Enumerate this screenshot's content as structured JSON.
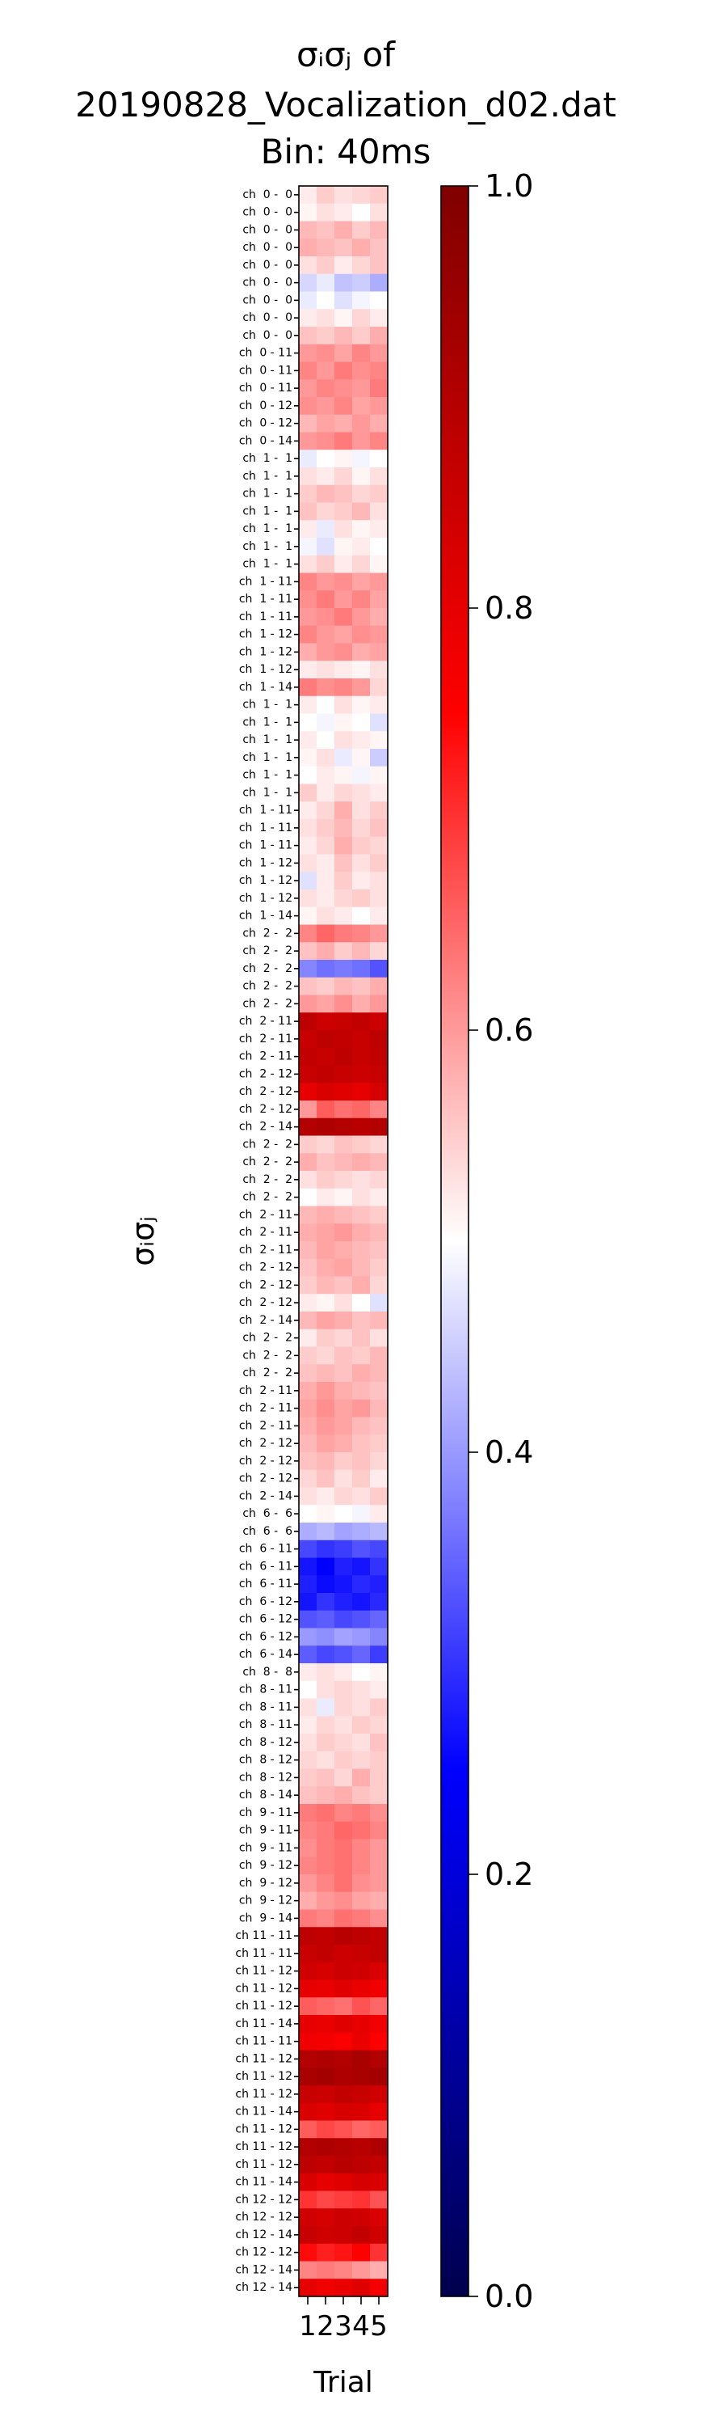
{
  "chart_data": {
    "type": "heatmap",
    "title": [
      "σᵢσⱼ of",
      "20190828_Vocalization_d02.dat",
      "Bin: 40ms"
    ],
    "xlabel": "Trial",
    "ylabel": "σᵢσⱼ",
    "x": [
      1,
      2,
      3,
      4,
      5
    ],
    "rows": [
      "ch  0 -  0",
      "ch  0 -  0",
      "ch  0 -  0",
      "ch  0 -  0",
      "ch  0 -  0",
      "ch  0 -  0",
      "ch  0 -  0",
      "ch  0 -  0",
      "ch  0 -  0",
      "ch  0 - 11",
      "ch  0 - 11",
      "ch  0 - 11",
      "ch  0 - 12",
      "ch  0 - 12",
      "ch  0 - 14",
      "ch  1 -  1",
      "ch  1 -  1",
      "ch  1 -  1",
      "ch  1 -  1",
      "ch  1 -  1",
      "ch  1 -  1",
      "ch  1 -  1",
      "ch  1 - 11",
      "ch  1 - 11",
      "ch  1 - 11",
      "ch  1 - 12",
      "ch  1 - 12",
      "ch  1 - 12",
      "ch  1 - 14",
      "ch  1 -  1",
      "ch  1 -  1",
      "ch  1 -  1",
      "ch  1 -  1",
      "ch  1 -  1",
      "ch  1 -  1",
      "ch  1 - 11",
      "ch  1 - 11",
      "ch  1 - 11",
      "ch  1 - 12",
      "ch  1 - 12",
      "ch  1 - 12",
      "ch  1 - 14",
      "ch  2 -  2",
      "ch  2 -  2",
      "ch  2 -  2",
      "ch  2 -  2",
      "ch  2 -  2",
      "ch  2 - 11",
      "ch  2 - 11",
      "ch  2 - 11",
      "ch  2 - 12",
      "ch  2 - 12",
      "ch  2 - 12",
      "ch  2 - 14",
      "ch  2 -  2",
      "ch  2 -  2",
      "ch  2 -  2",
      "ch  2 -  2",
      "ch  2 - 11",
      "ch  2 - 11",
      "ch  2 - 11",
      "ch  2 - 12",
      "ch  2 - 12",
      "ch  2 - 12",
      "ch  2 - 14",
      "ch  2 -  2",
      "ch  2 -  2",
      "ch  2 -  2",
      "ch  2 - 11",
      "ch  2 - 11",
      "ch  2 - 11",
      "ch  2 - 12",
      "ch  2 - 12",
      "ch  2 - 12",
      "ch  2 - 14",
      "ch  6 -  6",
      "ch  6 -  6",
      "ch  6 - 11",
      "ch  6 - 11",
      "ch  6 - 11",
      "ch  6 - 12",
      "ch  6 - 12",
      "ch  6 - 12",
      "ch  6 - 14",
      "ch  8 -  8",
      "ch  8 - 11",
      "ch  8 - 11",
      "ch  8 - 11",
      "ch  8 - 12",
      "ch  8 - 12",
      "ch  8 - 12",
      "ch  8 - 14",
      "ch  9 - 11",
      "ch  9 - 11",
      "ch  9 - 11",
      "ch  9 - 12",
      "ch  9 - 12",
      "ch  9 - 12",
      "ch  9 - 14",
      "ch 11 - 11",
      "ch 11 - 11",
      "ch 11 - 12",
      "ch 11 - 12",
      "ch 11 - 12",
      "ch 11 - 14",
      "ch 11 - 11",
      "ch 11 - 12",
      "ch 11 - 12",
      "ch 11 - 12",
      "ch 11 - 14",
      "ch 11 - 12",
      "ch 11 - 12",
      "ch 11 - 12",
      "ch 11 - 14",
      "ch 12 - 12",
      "ch 12 - 12",
      "ch 12 - 14",
      "ch 12 - 12",
      "ch 12 - 14",
      "ch 12 - 14"
    ],
    "values": [
      [
        0.52,
        0.55,
        0.53,
        0.54,
        0.55
      ],
      [
        0.51,
        0.53,
        0.52,
        0.5,
        0.53
      ],
      [
        0.57,
        0.56,
        0.58,
        0.55,
        0.57
      ],
      [
        0.58,
        0.57,
        0.56,
        0.58,
        0.56
      ],
      [
        0.53,
        0.55,
        0.52,
        0.54,
        0.56
      ],
      [
        0.46,
        0.48,
        0.44,
        0.45,
        0.42
      ],
      [
        0.48,
        0.5,
        0.47,
        0.49,
        0.5
      ],
      [
        0.52,
        0.53,
        0.51,
        0.54,
        0.52
      ],
      [
        0.56,
        0.55,
        0.57,
        0.55,
        0.58
      ],
      [
        0.6,
        0.61,
        0.59,
        0.62,
        0.6
      ],
      [
        0.62,
        0.6,
        0.63,
        0.61,
        0.62
      ],
      [
        0.6,
        0.62,
        0.61,
        0.6,
        0.63
      ],
      [
        0.61,
        0.6,
        0.62,
        0.59,
        0.6
      ],
      [
        0.57,
        0.59,
        0.58,
        0.6,
        0.58
      ],
      [
        0.6,
        0.61,
        0.63,
        0.6,
        0.62
      ],
      [
        0.48,
        0.5,
        0.51,
        0.49,
        0.5
      ],
      [
        0.53,
        0.52,
        0.54,
        0.51,
        0.53
      ],
      [
        0.55,
        0.57,
        0.56,
        0.54,
        0.55
      ],
      [
        0.56,
        0.54,
        0.55,
        0.57,
        0.53
      ],
      [
        0.52,
        0.48,
        0.53,
        0.51,
        0.52
      ],
      [
        0.49,
        0.47,
        0.51,
        0.52,
        0.5
      ],
      [
        0.53,
        0.55,
        0.52,
        0.54,
        0.51
      ],
      [
        0.62,
        0.6,
        0.61,
        0.59,
        0.6
      ],
      [
        0.61,
        0.63,
        0.6,
        0.62,
        0.59
      ],
      [
        0.6,
        0.61,
        0.63,
        0.6,
        0.58
      ],
      [
        0.62,
        0.6,
        0.59,
        0.61,
        0.6
      ],
      [
        0.58,
        0.6,
        0.61,
        0.58,
        0.59
      ],
      [
        0.52,
        0.53,
        0.52,
        0.51,
        0.53
      ],
      [
        0.63,
        0.61,
        0.62,
        0.6,
        0.54
      ],
      [
        0.52,
        0.5,
        0.53,
        0.51,
        0.52
      ],
      [
        0.5,
        0.49,
        0.51,
        0.5,
        0.47
      ],
      [
        0.52,
        0.5,
        0.53,
        0.52,
        0.51
      ],
      [
        0.51,
        0.53,
        0.48,
        0.51,
        0.45
      ],
      [
        0.5,
        0.52,
        0.51,
        0.49,
        0.51
      ],
      [
        0.55,
        0.52,
        0.54,
        0.53,
        0.52
      ],
      [
        0.52,
        0.54,
        0.58,
        0.53,
        0.55
      ],
      [
        0.53,
        0.55,
        0.57,
        0.54,
        0.56
      ],
      [
        0.52,
        0.54,
        0.58,
        0.55,
        0.54
      ],
      [
        0.53,
        0.52,
        0.56,
        0.53,
        0.55
      ],
      [
        0.47,
        0.52,
        0.55,
        0.52,
        0.53
      ],
      [
        0.53,
        0.52,
        0.54,
        0.55,
        0.53
      ],
      [
        0.51,
        0.53,
        0.52,
        0.5,
        0.52
      ],
      [
        0.62,
        0.65,
        0.63,
        0.62,
        0.6
      ],
      [
        0.56,
        0.58,
        0.55,
        0.57,
        0.54
      ],
      [
        0.38,
        0.36,
        0.37,
        0.36,
        0.33
      ],
      [
        0.56,
        0.55,
        0.57,
        0.56,
        0.58
      ],
      [
        0.6,
        0.59,
        0.61,
        0.58,
        0.6
      ],
      [
        0.88,
        0.85,
        0.86,
        0.87,
        0.85
      ],
      [
        0.86,
        0.88,
        0.87,
        0.86,
        0.88
      ],
      [
        0.87,
        0.86,
        0.88,
        0.86,
        0.87
      ],
      [
        0.86,
        0.87,
        0.86,
        0.85,
        0.86
      ],
      [
        0.8,
        0.82,
        0.81,
        0.8,
        0.83
      ],
      [
        0.6,
        0.66,
        0.64,
        0.65,
        0.62
      ],
      [
        0.9,
        0.91,
        0.9,
        0.89,
        0.9
      ],
      [
        0.55,
        0.54,
        0.56,
        0.55,
        0.54
      ],
      [
        0.58,
        0.56,
        0.57,
        0.58,
        0.57
      ],
      [
        0.53,
        0.55,
        0.54,
        0.53,
        0.54
      ],
      [
        0.5,
        0.52,
        0.51,
        0.53,
        0.52
      ],
      [
        0.57,
        0.58,
        0.57,
        0.56,
        0.55
      ],
      [
        0.58,
        0.59,
        0.6,
        0.58,
        0.57
      ],
      [
        0.57,
        0.59,
        0.58,
        0.57,
        0.56
      ],
      [
        0.56,
        0.58,
        0.59,
        0.57,
        0.55
      ],
      [
        0.55,
        0.57,
        0.56,
        0.58,
        0.54
      ],
      [
        0.52,
        0.51,
        0.53,
        0.5,
        0.47
      ],
      [
        0.57,
        0.59,
        0.58,
        0.56,
        0.57
      ],
      [
        0.52,
        0.55,
        0.54,
        0.56,
        0.53
      ],
      [
        0.55,
        0.54,
        0.56,
        0.55,
        0.57
      ],
      [
        0.56,
        0.57,
        0.56,
        0.58,
        0.57
      ],
      [
        0.58,
        0.6,
        0.58,
        0.57,
        0.56
      ],
      [
        0.59,
        0.61,
        0.59,
        0.6,
        0.57
      ],
      [
        0.58,
        0.6,
        0.59,
        0.57,
        0.56
      ],
      [
        0.57,
        0.59,
        0.58,
        0.56,
        0.55
      ],
      [
        0.56,
        0.57,
        0.55,
        0.56,
        0.54
      ],
      [
        0.54,
        0.56,
        0.53,
        0.55,
        0.52
      ],
      [
        0.53,
        0.52,
        0.54,
        0.53,
        0.55
      ],
      [
        0.5,
        0.51,
        0.5,
        0.49,
        0.52
      ],
      [
        0.42,
        0.43,
        0.41,
        0.42,
        0.43
      ],
      [
        0.32,
        0.3,
        0.31,
        0.33,
        0.32
      ],
      [
        0.27,
        0.25,
        0.28,
        0.27,
        0.3
      ],
      [
        0.28,
        0.26,
        0.27,
        0.29,
        0.28
      ],
      [
        0.27,
        0.3,
        0.28,
        0.27,
        0.29
      ],
      [
        0.33,
        0.34,
        0.32,
        0.33,
        0.35
      ],
      [
        0.4,
        0.39,
        0.41,
        0.4,
        0.38
      ],
      [
        0.34,
        0.32,
        0.33,
        0.35,
        0.31
      ],
      [
        0.52,
        0.53,
        0.52,
        0.5,
        0.51
      ],
      [
        0.5,
        0.53,
        0.54,
        0.53,
        0.52
      ],
      [
        0.53,
        0.48,
        0.54,
        0.53,
        0.55
      ],
      [
        0.52,
        0.54,
        0.53,
        0.55,
        0.54
      ],
      [
        0.53,
        0.55,
        0.54,
        0.53,
        0.56
      ],
      [
        0.54,
        0.53,
        0.55,
        0.54,
        0.55
      ],
      [
        0.55,
        0.56,
        0.54,
        0.58,
        0.55
      ],
      [
        0.56,
        0.57,
        0.58,
        0.56,
        0.55
      ],
      [
        0.63,
        0.64,
        0.62,
        0.63,
        0.61
      ],
      [
        0.62,
        0.63,
        0.65,
        0.64,
        0.62
      ],
      [
        0.61,
        0.63,
        0.64,
        0.62,
        0.6
      ],
      [
        0.62,
        0.63,
        0.64,
        0.62,
        0.6
      ],
      [
        0.6,
        0.62,
        0.64,
        0.61,
        0.6
      ],
      [
        0.58,
        0.6,
        0.61,
        0.59,
        0.58
      ],
      [
        0.63,
        0.62,
        0.64,
        0.63,
        0.61
      ],
      [
        0.88,
        0.87,
        0.89,
        0.88,
        0.87
      ],
      [
        0.86,
        0.87,
        0.85,
        0.86,
        0.87
      ],
      [
        0.84,
        0.83,
        0.85,
        0.84,
        0.82
      ],
      [
        0.8,
        0.79,
        0.81,
        0.79,
        0.78
      ],
      [
        0.66,
        0.65,
        0.64,
        0.67,
        0.65
      ],
      [
        0.8,
        0.79,
        0.81,
        0.8,
        0.78
      ],
      [
        0.78,
        0.77,
        0.76,
        0.79,
        0.75
      ],
      [
        0.9,
        0.91,
        0.9,
        0.92,
        0.9
      ],
      [
        0.92,
        0.93,
        0.91,
        0.92,
        0.93
      ],
      [
        0.86,
        0.85,
        0.87,
        0.86,
        0.84
      ],
      [
        0.82,
        0.81,
        0.83,
        0.82,
        0.8
      ],
      [
        0.66,
        0.68,
        0.67,
        0.65,
        0.66
      ],
      [
        0.9,
        0.91,
        0.9,
        0.89,
        0.91
      ],
      [
        0.88,
        0.87,
        0.89,
        0.88,
        0.87
      ],
      [
        0.82,
        0.8,
        0.81,
        0.83,
        0.82
      ],
      [
        0.7,
        0.68,
        0.69,
        0.7,
        0.67
      ],
      [
        0.84,
        0.83,
        0.85,
        0.84,
        0.82
      ],
      [
        0.86,
        0.84,
        0.85,
        0.87,
        0.84
      ],
      [
        0.74,
        0.72,
        0.73,
        0.75,
        0.7
      ],
      [
        0.62,
        0.63,
        0.62,
        0.6,
        0.58
      ],
      [
        0.8,
        0.78,
        0.79,
        0.81,
        0.77
      ]
    ],
    "colormap": "seismic",
    "clim": [
      0,
      1
    ],
    "cticks": [
      {
        "value": 0,
        "label": "0.0"
      },
      {
        "value": 0.2,
        "label": "0.2"
      },
      {
        "value": 0.4,
        "label": "0.4"
      },
      {
        "value": 0.6,
        "label": "0.6"
      },
      {
        "value": 0.8,
        "label": "0.8"
      },
      {
        "value": 1,
        "label": "1.0"
      }
    ]
  }
}
